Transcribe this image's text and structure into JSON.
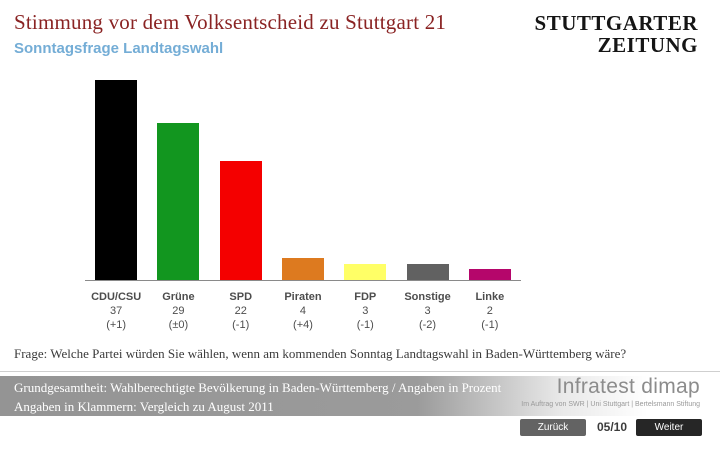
{
  "header": {
    "title": "Stimmung vor dem Volksentscheid zu Stuttgart 21",
    "subtitle": "Sonntagsfrage Landtagswahl",
    "logo_line1": "STUTTGARTER",
    "logo_line2": "ZEITUNG"
  },
  "chart_data": {
    "type": "bar",
    "title": "Sonntagsfrage Landtagswahl",
    "categories": [
      "CDU/CSU",
      "Grüne",
      "SPD",
      "Piraten",
      "FDP",
      "Sonstige",
      "Linke"
    ],
    "values": [
      37,
      29,
      22,
      4,
      3,
      3,
      2
    ],
    "changes": [
      "(+1)",
      "(±0)",
      "(-1)",
      "(+4)",
      "(-1)",
      "(-2)",
      "(-1)"
    ],
    "colors": [
      "#000000",
      "#12961f",
      "#f40000",
      "#dd7a1f",
      "#ffff66",
      "#616161",
      "#b5066b"
    ],
    "unit": "Prozent",
    "ylim": [
      0,
      37
    ],
    "grid": "off",
    "legend": "none"
  },
  "question": "Frage: Welche Partei würden Sie wählen, wenn am kommenden Sonntag Landtagswahl in Baden-Württemberg wäre?",
  "footer": {
    "line1": "Grundgesamtheit: Wahlberechtigte Bevölkerung in Baden-Württemberg / Angaben in Prozent",
    "line2": "Angaben in Klammern: Vergleich zu August 2011",
    "agency": "Infratest dimap",
    "agency_sub": "Im Auftrag von SWR | Uni Stuttgart | Bertelsmann Stiftung"
  },
  "nav": {
    "back_label": "Zurück",
    "page": "05/10",
    "next_label": "Weiter"
  }
}
